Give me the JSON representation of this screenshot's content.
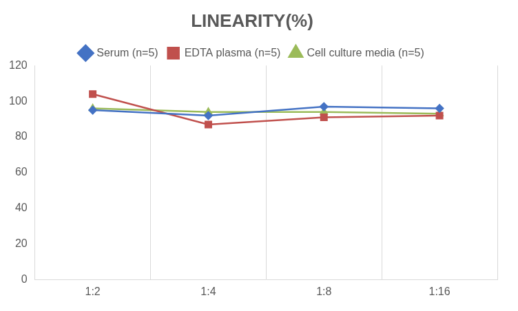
{
  "chart_data": {
    "type": "line",
    "title": "LINEARITY(%)",
    "categories": [
      "1:2",
      "1:4",
      "1:8",
      "1:16"
    ],
    "series": [
      {
        "name": "Serum (n=5)",
        "color": "#4472c4",
        "marker": "diamond",
        "line_style": "solid",
        "values": [
          95,
          92,
          97,
          96
        ]
      },
      {
        "name": "EDTA plasma (n=5)",
        "color": "#c0504d",
        "marker": "square",
        "line_style": "solid",
        "values": [
          104,
          87,
          91,
          92
        ]
      },
      {
        "name": "Cell culture media (n=5)",
        "color": "#9bbb59",
        "marker": "triangle",
        "line_style": "solid",
        "values": [
          96,
          94,
          94,
          93
        ]
      }
    ],
    "ylim": [
      0,
      120
    ],
    "yticks": [
      0,
      20,
      40,
      60,
      80,
      100,
      120
    ],
    "grid": true,
    "legend": "top"
  }
}
